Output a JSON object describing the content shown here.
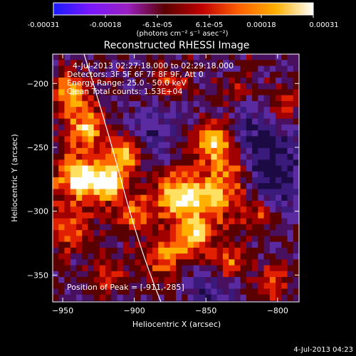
{
  "colorbar": {
    "tick_labels": [
      "-0.00031",
      "-0.00018",
      "-6.1e-05",
      "6.1e-05",
      "0.00018",
      "0.00031"
    ],
    "unit_label": "(photons cm⁻² s⁻¹ asec⁻²)",
    "stops": [
      "#1a1aff",
      "#7a18ff",
      "#9a20c0",
      "#5a0000",
      "#c00000",
      "#ff6000",
      "#ffb000",
      "#ffffff"
    ]
  },
  "plot": {
    "title": "Reconstructed RHESSI Image",
    "info_lines": [
      "4-Jul-2013 02:27:18.000 to 02:29:18.000",
      "Detectors: 3F 5F 6F 7F 8F 9F, Att 0",
      "Energy Range: 25.0 - 50.0 keV",
      "Clean    Total counts: 1.53E+04"
    ],
    "peak_label": "Position of Peak = [-911,-285]",
    "xlabel": "Heliocentric X (arcsec)",
    "ylabel": "Heliocentric Y (arcsec)",
    "x_ticks": [
      -950,
      -900,
      -850,
      -800
    ],
    "y_ticks": [
      -200,
      -250,
      -300,
      -350
    ],
    "xlim": [
      -957,
      -785
    ],
    "ylim": [
      -371,
      -177
    ]
  },
  "footer": {
    "timestamp": "4-Jul-2013 04:23"
  }
}
